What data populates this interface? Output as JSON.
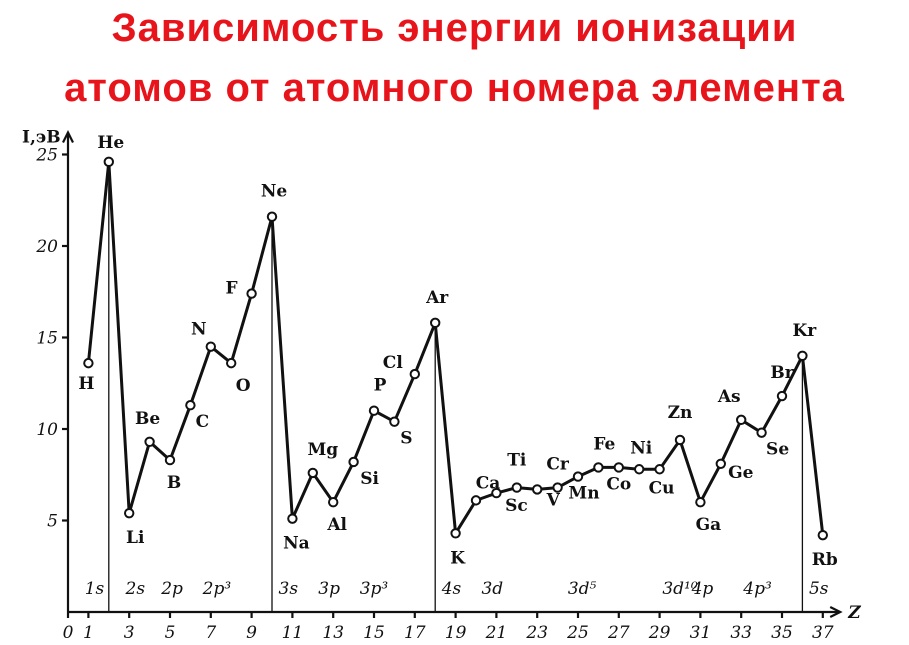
{
  "title_line1": "Зависимость энергии ионизации",
  "title_line2": "атомов от атомного номера элемента",
  "chart_data": {
    "type": "line",
    "ylabel": "I,эВ",
    "xlabel": "Z",
    "xlim": [
      0,
      38
    ],
    "ylim": [
      0,
      25
    ],
    "x_ticks": [
      0,
      1,
      3,
      5,
      7,
      9,
      11,
      13,
      15,
      17,
      19,
      21,
      23,
      25,
      27,
      29,
      31,
      33,
      35,
      37
    ],
    "y_ticks": [
      5,
      10,
      15,
      20,
      25
    ],
    "elements": [
      {
        "z": 1,
        "symbol": "H",
        "ie": 13.6
      },
      {
        "z": 2,
        "symbol": "He",
        "ie": 24.6
      },
      {
        "z": 3,
        "symbol": "Li",
        "ie": 5.4
      },
      {
        "z": 4,
        "symbol": "Be",
        "ie": 9.3
      },
      {
        "z": 5,
        "symbol": "B",
        "ie": 8.3
      },
      {
        "z": 6,
        "symbol": "C",
        "ie": 11.3
      },
      {
        "z": 7,
        "symbol": "N",
        "ie": 14.5
      },
      {
        "z": 8,
        "symbol": "O",
        "ie": 13.6
      },
      {
        "z": 9,
        "symbol": "F",
        "ie": 17.4
      },
      {
        "z": 10,
        "symbol": "Ne",
        "ie": 21.6
      },
      {
        "z": 11,
        "symbol": "Na",
        "ie": 5.1
      },
      {
        "z": 12,
        "symbol": "Mg",
        "ie": 7.6
      },
      {
        "z": 13,
        "symbol": "Al",
        "ie": 6.0
      },
      {
        "z": 14,
        "symbol": "Si",
        "ie": 8.2
      },
      {
        "z": 15,
        "symbol": "P",
        "ie": 11.0
      },
      {
        "z": 16,
        "symbol": "S",
        "ie": 10.4
      },
      {
        "z": 17,
        "symbol": "Cl",
        "ie": 13.0
      },
      {
        "z": 18,
        "symbol": "Ar",
        "ie": 15.8
      },
      {
        "z": 19,
        "symbol": "K",
        "ie": 4.3
      },
      {
        "z": 20,
        "symbol": "Ca",
        "ie": 6.1
      },
      {
        "z": 21,
        "symbol": "Sc",
        "ie": 6.5
      },
      {
        "z": 22,
        "symbol": "Ti",
        "ie": 6.8
      },
      {
        "z": 23,
        "symbol": "V",
        "ie": 6.7
      },
      {
        "z": 24,
        "symbol": "Cr",
        "ie": 6.8
      },
      {
        "z": 25,
        "symbol": "Mn",
        "ie": 7.4
      },
      {
        "z": 26,
        "symbol": "Fe",
        "ie": 7.9
      },
      {
        "z": 27,
        "symbol": "Co",
        "ie": 7.9
      },
      {
        "z": 28,
        "symbol": "Ni",
        "ie": 7.8
      },
      {
        "z": 29,
        "symbol": "Cu",
        "ie": 7.8
      },
      {
        "z": 30,
        "symbol": "Zn",
        "ie": 9.4
      },
      {
        "z": 31,
        "symbol": "Ga",
        "ie": 6.0
      },
      {
        "z": 32,
        "symbol": "Ge",
        "ie": 8.1
      },
      {
        "z": 33,
        "symbol": "As",
        "ie": 10.5
      },
      {
        "z": 34,
        "symbol": "Se",
        "ie": 9.8
      },
      {
        "z": 35,
        "symbol": "Br",
        "ie": 11.8
      },
      {
        "z": 36,
        "symbol": "Kr",
        "ie": 14.0
      },
      {
        "z": 37,
        "symbol": "Rb",
        "ie": 4.2
      }
    ],
    "period_lines": [
      2,
      10,
      18,
      36
    ],
    "shells": [
      {
        "x": 1.3,
        "text": "1s"
      },
      {
        "x": 3.3,
        "text": "2s"
      },
      {
        "x": 5.1,
        "text": "2p"
      },
      {
        "x": 7.3,
        "text": "2p³"
      },
      {
        "x": 10.8,
        "text": "3s"
      },
      {
        "x": 12.8,
        "text": "3p"
      },
      {
        "x": 15.0,
        "text": "3p³"
      },
      {
        "x": 18.8,
        "text": "4s"
      },
      {
        "x": 20.8,
        "text": "3d"
      },
      {
        "x": 25.2,
        "text": "3d⁵"
      },
      {
        "x": 30.0,
        "text": "3d¹⁰"
      },
      {
        "x": 31.1,
        "text": "4p"
      },
      {
        "x": 33.8,
        "text": "4p³"
      },
      {
        "x": 36.8,
        "text": "5s"
      }
    ]
  }
}
